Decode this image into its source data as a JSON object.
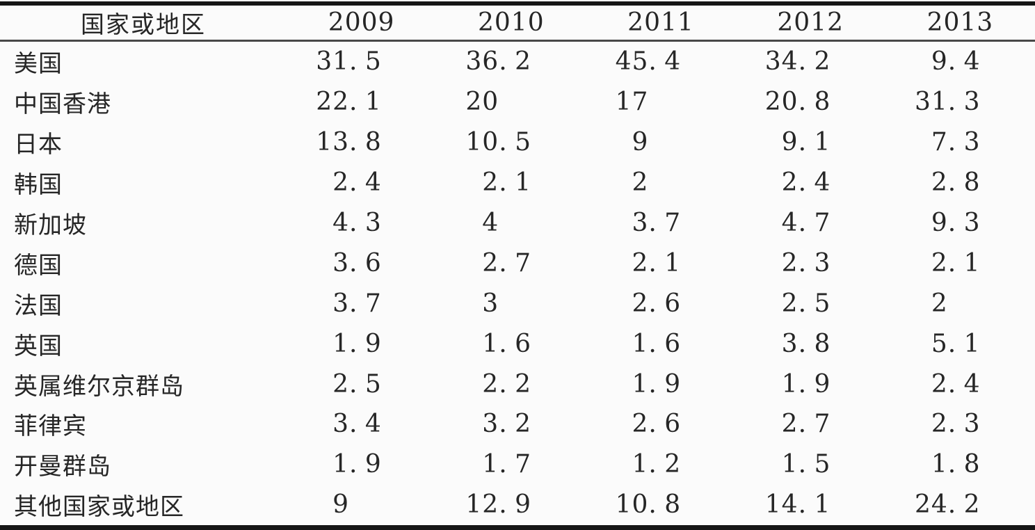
{
  "table": {
    "columns": [
      "国家或地区",
      "2009",
      "2010",
      "2011",
      "2012",
      "2013"
    ],
    "rows": [
      {
        "label": "美国",
        "values": [
          "31.5",
          "36.2",
          "45.4",
          "34.2",
          "9.4"
        ]
      },
      {
        "label": "中国香港",
        "values": [
          "22.1",
          "20",
          "17",
          "20.8",
          "31.3"
        ]
      },
      {
        "label": "日本",
        "values": [
          "13.8",
          "10.5",
          "9",
          "9.1",
          "7.3"
        ]
      },
      {
        "label": "韩国",
        "values": [
          "2.4",
          "2.1",
          "2",
          "2.4",
          "2.8"
        ]
      },
      {
        "label": "新加坡",
        "values": [
          "4.3",
          "4",
          "3.7",
          "4.7",
          "9.3"
        ]
      },
      {
        "label": "德国",
        "values": [
          "3.6",
          "2.7",
          "2.1",
          "2.3",
          "2.1"
        ]
      },
      {
        "label": "法国",
        "values": [
          "3.7",
          "3",
          "2.6",
          "2.5",
          "2"
        ]
      },
      {
        "label": "英国",
        "values": [
          "1.9",
          "1.6",
          "1.6",
          "3.8",
          "5.1"
        ]
      },
      {
        "label": "英属维尔京群岛",
        "values": [
          "2.5",
          "2.2",
          "1.9",
          "1.9",
          "2.4"
        ]
      },
      {
        "label": "菲律宾",
        "values": [
          "3.4",
          "3.2",
          "2.6",
          "2.7",
          "2.3"
        ]
      },
      {
        "label": "开曼群岛",
        "values": [
          "1.9",
          "1.7",
          "1.2",
          "1.5",
          "1.8"
        ]
      },
      {
        "label": "其他国家或地区",
        "values": [
          "9",
          "12.9",
          "10.8",
          "14.1",
          "24.2"
        ]
      }
    ],
    "rule_color": "#161616",
    "mid_rule_color": "#484848",
    "text_color": "#262626",
    "background_color": "#fbfbfb"
  },
  "chart_data": {
    "type": "table",
    "title": "",
    "categories": [
      "2009",
      "2010",
      "2011",
      "2012",
      "2013"
    ],
    "series": [
      {
        "name": "美国",
        "values": [
          31.5,
          36.2,
          45.4,
          34.2,
          9.4
        ]
      },
      {
        "name": "中国香港",
        "values": [
          22.1,
          20,
          17,
          20.8,
          31.3
        ]
      },
      {
        "name": "日本",
        "values": [
          13.8,
          10.5,
          9,
          9.1,
          7.3
        ]
      },
      {
        "name": "韩国",
        "values": [
          2.4,
          2.1,
          2,
          2.4,
          2.8
        ]
      },
      {
        "name": "新加坡",
        "values": [
          4.3,
          4,
          3.7,
          4.7,
          9.3
        ]
      },
      {
        "name": "德国",
        "values": [
          3.6,
          2.7,
          2.1,
          2.3,
          2.1
        ]
      },
      {
        "name": "法国",
        "values": [
          3.7,
          3,
          2.6,
          2.5,
          2
        ]
      },
      {
        "name": "英国",
        "values": [
          1.9,
          1.6,
          1.6,
          3.8,
          5.1
        ]
      },
      {
        "name": "英属维尔京群岛",
        "values": [
          2.5,
          2.2,
          1.9,
          1.9,
          2.4
        ]
      },
      {
        "name": "菲律宾",
        "values": [
          3.4,
          3.2,
          2.6,
          2.7,
          2.3
        ]
      },
      {
        "name": "开曼群岛",
        "values": [
          1.9,
          1.7,
          1.2,
          1.5,
          1.8
        ]
      },
      {
        "name": "其他国家或地区",
        "values": [
          9,
          12.9,
          10.8,
          14.1,
          24.2
        ]
      }
    ],
    "xlabel": "国家或地区",
    "ylabel": ""
  }
}
